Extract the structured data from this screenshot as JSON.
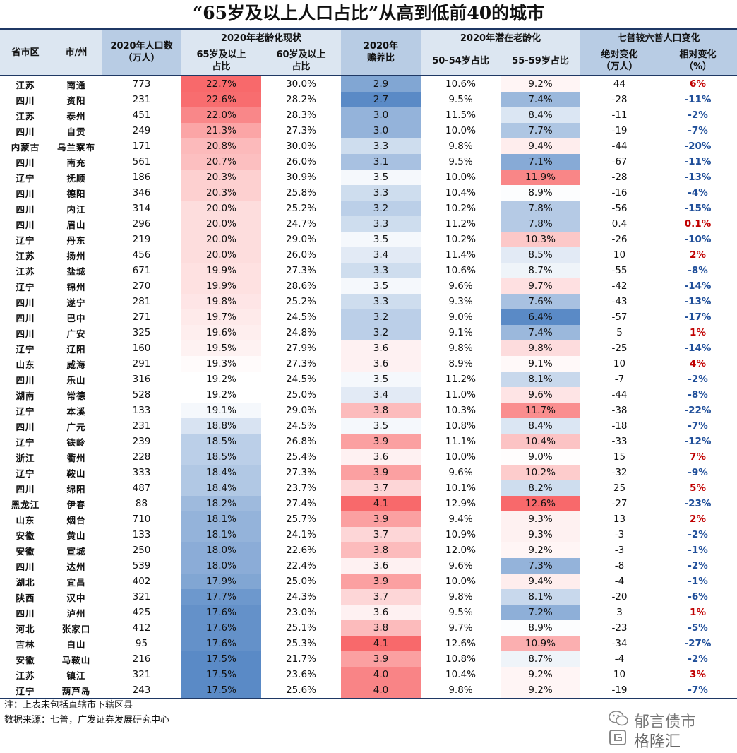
{
  "title": "“65岁及以上人口占比”从高到低前40的城市",
  "headers": {
    "prov": "省市区",
    "city": "市/州",
    "pop": "2020年人口数\n（万人）",
    "aging_group": "2020年老龄化现状",
    "age65": "65岁及以上\n占比",
    "age60": "60岁及以上\n占比",
    "dependency": "2020年\n赡养比",
    "potential_group": "2020年潜在老龄化",
    "age5054": "50-54岁占比",
    "age5559": "55-59岁占比",
    "change_group": "七普较六普人口变化",
    "abs_change": "绝对变化\n（万人）",
    "rel_change": "相对变化\n（%）"
  },
  "rows": [
    {
      "prov": "江苏",
      "city": "南通",
      "pop": "773",
      "a65": "22.7%",
      "a60": "30.0%",
      "dep": "2.9",
      "a5054": "10.6%",
      "a5559": "9.2%",
      "abs": "44",
      "rel": "6%"
    },
    {
      "prov": "四川",
      "city": "资阳",
      "pop": "231",
      "a65": "22.6%",
      "a60": "28.2%",
      "dep": "2.7",
      "a5054": "9.5%",
      "a5559": "7.4%",
      "abs": "-28",
      "rel": "-11%"
    },
    {
      "prov": "江苏",
      "city": "泰州",
      "pop": "451",
      "a65": "22.0%",
      "a60": "28.3%",
      "dep": "3.0",
      "a5054": "11.5%",
      "a5559": "8.4%",
      "abs": "-11",
      "rel": "-2%"
    },
    {
      "prov": "四川",
      "city": "自贡",
      "pop": "249",
      "a65": "21.3%",
      "a60": "27.3%",
      "dep": "3.0",
      "a5054": "10.0%",
      "a5559": "7.7%",
      "abs": "-19",
      "rel": "-7%"
    },
    {
      "prov": "内蒙古",
      "city": "乌兰察布",
      "pop": "171",
      "a65": "20.8%",
      "a60": "30.0%",
      "dep": "3.3",
      "a5054": "9.8%",
      "a5559": "9.4%",
      "abs": "-44",
      "rel": "-20%"
    },
    {
      "prov": "四川",
      "city": "南充",
      "pop": "561",
      "a65": "20.7%",
      "a60": "26.0%",
      "dep": "3.1",
      "a5054": "9.5%",
      "a5559": "7.1%",
      "abs": "-67",
      "rel": "-11%"
    },
    {
      "prov": "辽宁",
      "city": "抚顺",
      "pop": "186",
      "a65": "20.3%",
      "a60": "30.9%",
      "dep": "3.5",
      "a5054": "10.0%",
      "a5559": "11.9%",
      "abs": "-28",
      "rel": "-13%"
    },
    {
      "prov": "四川",
      "city": "德阳",
      "pop": "346",
      "a65": "20.3%",
      "a60": "25.8%",
      "dep": "3.3",
      "a5054": "10.4%",
      "a5559": "8.9%",
      "abs": "-16",
      "rel": "-4%"
    },
    {
      "prov": "四川",
      "city": "内江",
      "pop": "314",
      "a65": "20.0%",
      "a60": "25.2%",
      "dep": "3.2",
      "a5054": "10.2%",
      "a5559": "7.8%",
      "abs": "-56",
      "rel": "-15%"
    },
    {
      "prov": "四川",
      "city": "眉山",
      "pop": "296",
      "a65": "20.0%",
      "a60": "24.7%",
      "dep": "3.3",
      "a5054": "11.2%",
      "a5559": "7.8%",
      "abs": "0.4",
      "rel": "0.1%"
    },
    {
      "prov": "辽宁",
      "city": "丹东",
      "pop": "219",
      "a65": "20.0%",
      "a60": "29.0%",
      "dep": "3.5",
      "a5054": "10.2%",
      "a5559": "10.3%",
      "abs": "-26",
      "rel": "-10%"
    },
    {
      "prov": "江苏",
      "city": "扬州",
      "pop": "456",
      "a65": "20.0%",
      "a60": "26.0%",
      "dep": "3.4",
      "a5054": "11.4%",
      "a5559": "8.5%",
      "abs": "10",
      "rel": "2%"
    },
    {
      "prov": "江苏",
      "city": "盐城",
      "pop": "671",
      "a65": "19.9%",
      "a60": "27.3%",
      "dep": "3.3",
      "a5054": "10.6%",
      "a5559": "8.7%",
      "abs": "-55",
      "rel": "-8%"
    },
    {
      "prov": "辽宁",
      "city": "锦州",
      "pop": "270",
      "a65": "19.9%",
      "a60": "28.6%",
      "dep": "3.5",
      "a5054": "9.6%",
      "a5559": "9.7%",
      "abs": "-42",
      "rel": "-14%"
    },
    {
      "prov": "四川",
      "city": "遂宁",
      "pop": "281",
      "a65": "19.8%",
      "a60": "25.2%",
      "dep": "3.3",
      "a5054": "9.3%",
      "a5559": "7.6%",
      "abs": "-43",
      "rel": "-13%"
    },
    {
      "prov": "四川",
      "city": "巴中",
      "pop": "271",
      "a65": "19.7%",
      "a60": "24.5%",
      "dep": "3.2",
      "a5054": "9.0%",
      "a5559": "6.4%",
      "abs": "-57",
      "rel": "-17%"
    },
    {
      "prov": "四川",
      "city": "广安",
      "pop": "325",
      "a65": "19.6%",
      "a60": "24.8%",
      "dep": "3.2",
      "a5054": "9.1%",
      "a5559": "7.4%",
      "abs": "5",
      "rel": "1%"
    },
    {
      "prov": "辽宁",
      "city": "辽阳",
      "pop": "160",
      "a65": "19.5%",
      "a60": "27.9%",
      "dep": "3.6",
      "a5054": "9.8%",
      "a5559": "9.8%",
      "abs": "-25",
      "rel": "-14%"
    },
    {
      "prov": "山东",
      "city": "威海",
      "pop": "291",
      "a65": "19.3%",
      "a60": "27.3%",
      "dep": "3.6",
      "a5054": "8.9%",
      "a5559": "9.1%",
      "abs": "10",
      "rel": "4%"
    },
    {
      "prov": "四川",
      "city": "乐山",
      "pop": "316",
      "a65": "19.2%",
      "a60": "24.5%",
      "dep": "3.5",
      "a5054": "11.2%",
      "a5559": "8.1%",
      "abs": "-7",
      "rel": "-2%"
    },
    {
      "prov": "湖南",
      "city": "常德",
      "pop": "528",
      "a65": "19.2%",
      "a60": "25.0%",
      "dep": "3.4",
      "a5054": "11.0%",
      "a5559": "9.6%",
      "abs": "-44",
      "rel": "-8%"
    },
    {
      "prov": "辽宁",
      "city": "本溪",
      "pop": "133",
      "a65": "19.1%",
      "a60": "29.0%",
      "dep": "3.8",
      "a5054": "10.3%",
      "a5559": "11.7%",
      "abs": "-38",
      "rel": "-22%"
    },
    {
      "prov": "四川",
      "city": "广元",
      "pop": "231",
      "a65": "18.8%",
      "a60": "24.5%",
      "dep": "3.5",
      "a5054": "10.8%",
      "a5559": "8.4%",
      "abs": "-18",
      "rel": "-7%"
    },
    {
      "prov": "辽宁",
      "city": "铁岭",
      "pop": "239",
      "a65": "18.5%",
      "a60": "26.8%",
      "dep": "3.9",
      "a5054": "11.1%",
      "a5559": "10.4%",
      "abs": "-33",
      "rel": "-12%"
    },
    {
      "prov": "浙江",
      "city": "衢州",
      "pop": "228",
      "a65": "18.5%",
      "a60": "25.4%",
      "dep": "3.6",
      "a5054": "10.0%",
      "a5559": "9.0%",
      "abs": "15",
      "rel": "7%"
    },
    {
      "prov": "辽宁",
      "city": "鞍山",
      "pop": "333",
      "a65": "18.4%",
      "a60": "27.3%",
      "dep": "3.9",
      "a5054": "9.6%",
      "a5559": "10.2%",
      "abs": "-32",
      "rel": "-9%"
    },
    {
      "prov": "四川",
      "city": "绵阳",
      "pop": "487",
      "a65": "18.4%",
      "a60": "23.7%",
      "dep": "3.7",
      "a5054": "10.1%",
      "a5559": "8.2%",
      "abs": "25",
      "rel": "5%"
    },
    {
      "prov": "黑龙江",
      "city": "伊春",
      "pop": "88",
      "a65": "18.2%",
      "a60": "27.4%",
      "dep": "4.1",
      "a5054": "12.9%",
      "a5559": "12.6%",
      "abs": "-27",
      "rel": "-23%"
    },
    {
      "prov": "山东",
      "city": "烟台",
      "pop": "710",
      "a65": "18.1%",
      "a60": "25.7%",
      "dep": "3.9",
      "a5054": "9.4%",
      "a5559": "9.3%",
      "abs": "13",
      "rel": "2%"
    },
    {
      "prov": "安徽",
      "city": "黄山",
      "pop": "133",
      "a65": "18.1%",
      "a60": "24.1%",
      "dep": "3.7",
      "a5054": "10.9%",
      "a5559": "9.3%",
      "abs": "-3",
      "rel": "-2%"
    },
    {
      "prov": "安徽",
      "city": "宣城",
      "pop": "250",
      "a65": "18.0%",
      "a60": "22.6%",
      "dep": "3.8",
      "a5054": "12.0%",
      "a5559": "9.2%",
      "abs": "-3",
      "rel": "-1%"
    },
    {
      "prov": "四川",
      "city": "达州",
      "pop": "539",
      "a65": "18.0%",
      "a60": "22.4%",
      "dep": "3.6",
      "a5054": "9.6%",
      "a5559": "7.3%",
      "abs": "-8",
      "rel": "-2%"
    },
    {
      "prov": "湖北",
      "city": "宜昌",
      "pop": "402",
      "a65": "17.9%",
      "a60": "25.0%",
      "dep": "3.9",
      "a5054": "10.0%",
      "a5559": "9.4%",
      "abs": "-4",
      "rel": "-1%"
    },
    {
      "prov": "陕西",
      "city": "汉中",
      "pop": "321",
      "a65": "17.7%",
      "a60": "24.3%",
      "dep": "3.7",
      "a5054": "9.8%",
      "a5559": "8.1%",
      "abs": "-20",
      "rel": "-6%"
    },
    {
      "prov": "四川",
      "city": "泸州",
      "pop": "425",
      "a65": "17.6%",
      "a60": "23.0%",
      "dep": "3.6",
      "a5054": "9.5%",
      "a5559": "7.2%",
      "abs": "3",
      "rel": "1%"
    },
    {
      "prov": "河北",
      "city": "张家口",
      "pop": "412",
      "a65": "17.6%",
      "a60": "25.1%",
      "dep": "3.8",
      "a5054": "9.7%",
      "a5559": "8.9%",
      "abs": "-23",
      "rel": "-5%"
    },
    {
      "prov": "吉林",
      "city": "白山",
      "pop": "95",
      "a65": "17.6%",
      "a60": "25.3%",
      "dep": "4.1",
      "a5054": "12.6%",
      "a5559": "10.9%",
      "abs": "-34",
      "rel": "-27%"
    },
    {
      "prov": "安徽",
      "city": "马鞍山",
      "pop": "216",
      "a65": "17.5%",
      "a60": "21.7%",
      "dep": "3.9",
      "a5054": "10.8%",
      "a5559": "8.7%",
      "abs": "-4",
      "rel": "-2%"
    },
    {
      "prov": "江苏",
      "city": "镇江",
      "pop": "321",
      "a65": "17.5%",
      "a60": "23.6%",
      "dep": "4.0",
      "a5054": "10.4%",
      "a5559": "9.2%",
      "abs": "10",
      "rel": "3%"
    },
    {
      "prov": "辽宁",
      "city": "葫芦岛",
      "pop": "243",
      "a65": "17.5%",
      "a60": "25.6%",
      "dep": "4.0",
      "a5054": "9.8%",
      "a5559": "9.2%",
      "abs": "-19",
      "rel": "-7%"
    }
  ],
  "notes": {
    "note1": "注：上表未包括直辖市下辖区县",
    "note2": "数据来源：七普，广发证券发展研究中心"
  },
  "watermark": {
    "line1": "郁言债市",
    "line2": "格隆汇",
    "icon1": "wechat-icon",
    "icon2": "g-logo-icon"
  },
  "colors": {
    "red": "#f8696b",
    "blue": "#5a8ac6",
    "white": "#ffffff",
    "pos_text": "#c00000",
    "neg_text": "#1f4e99"
  }
}
